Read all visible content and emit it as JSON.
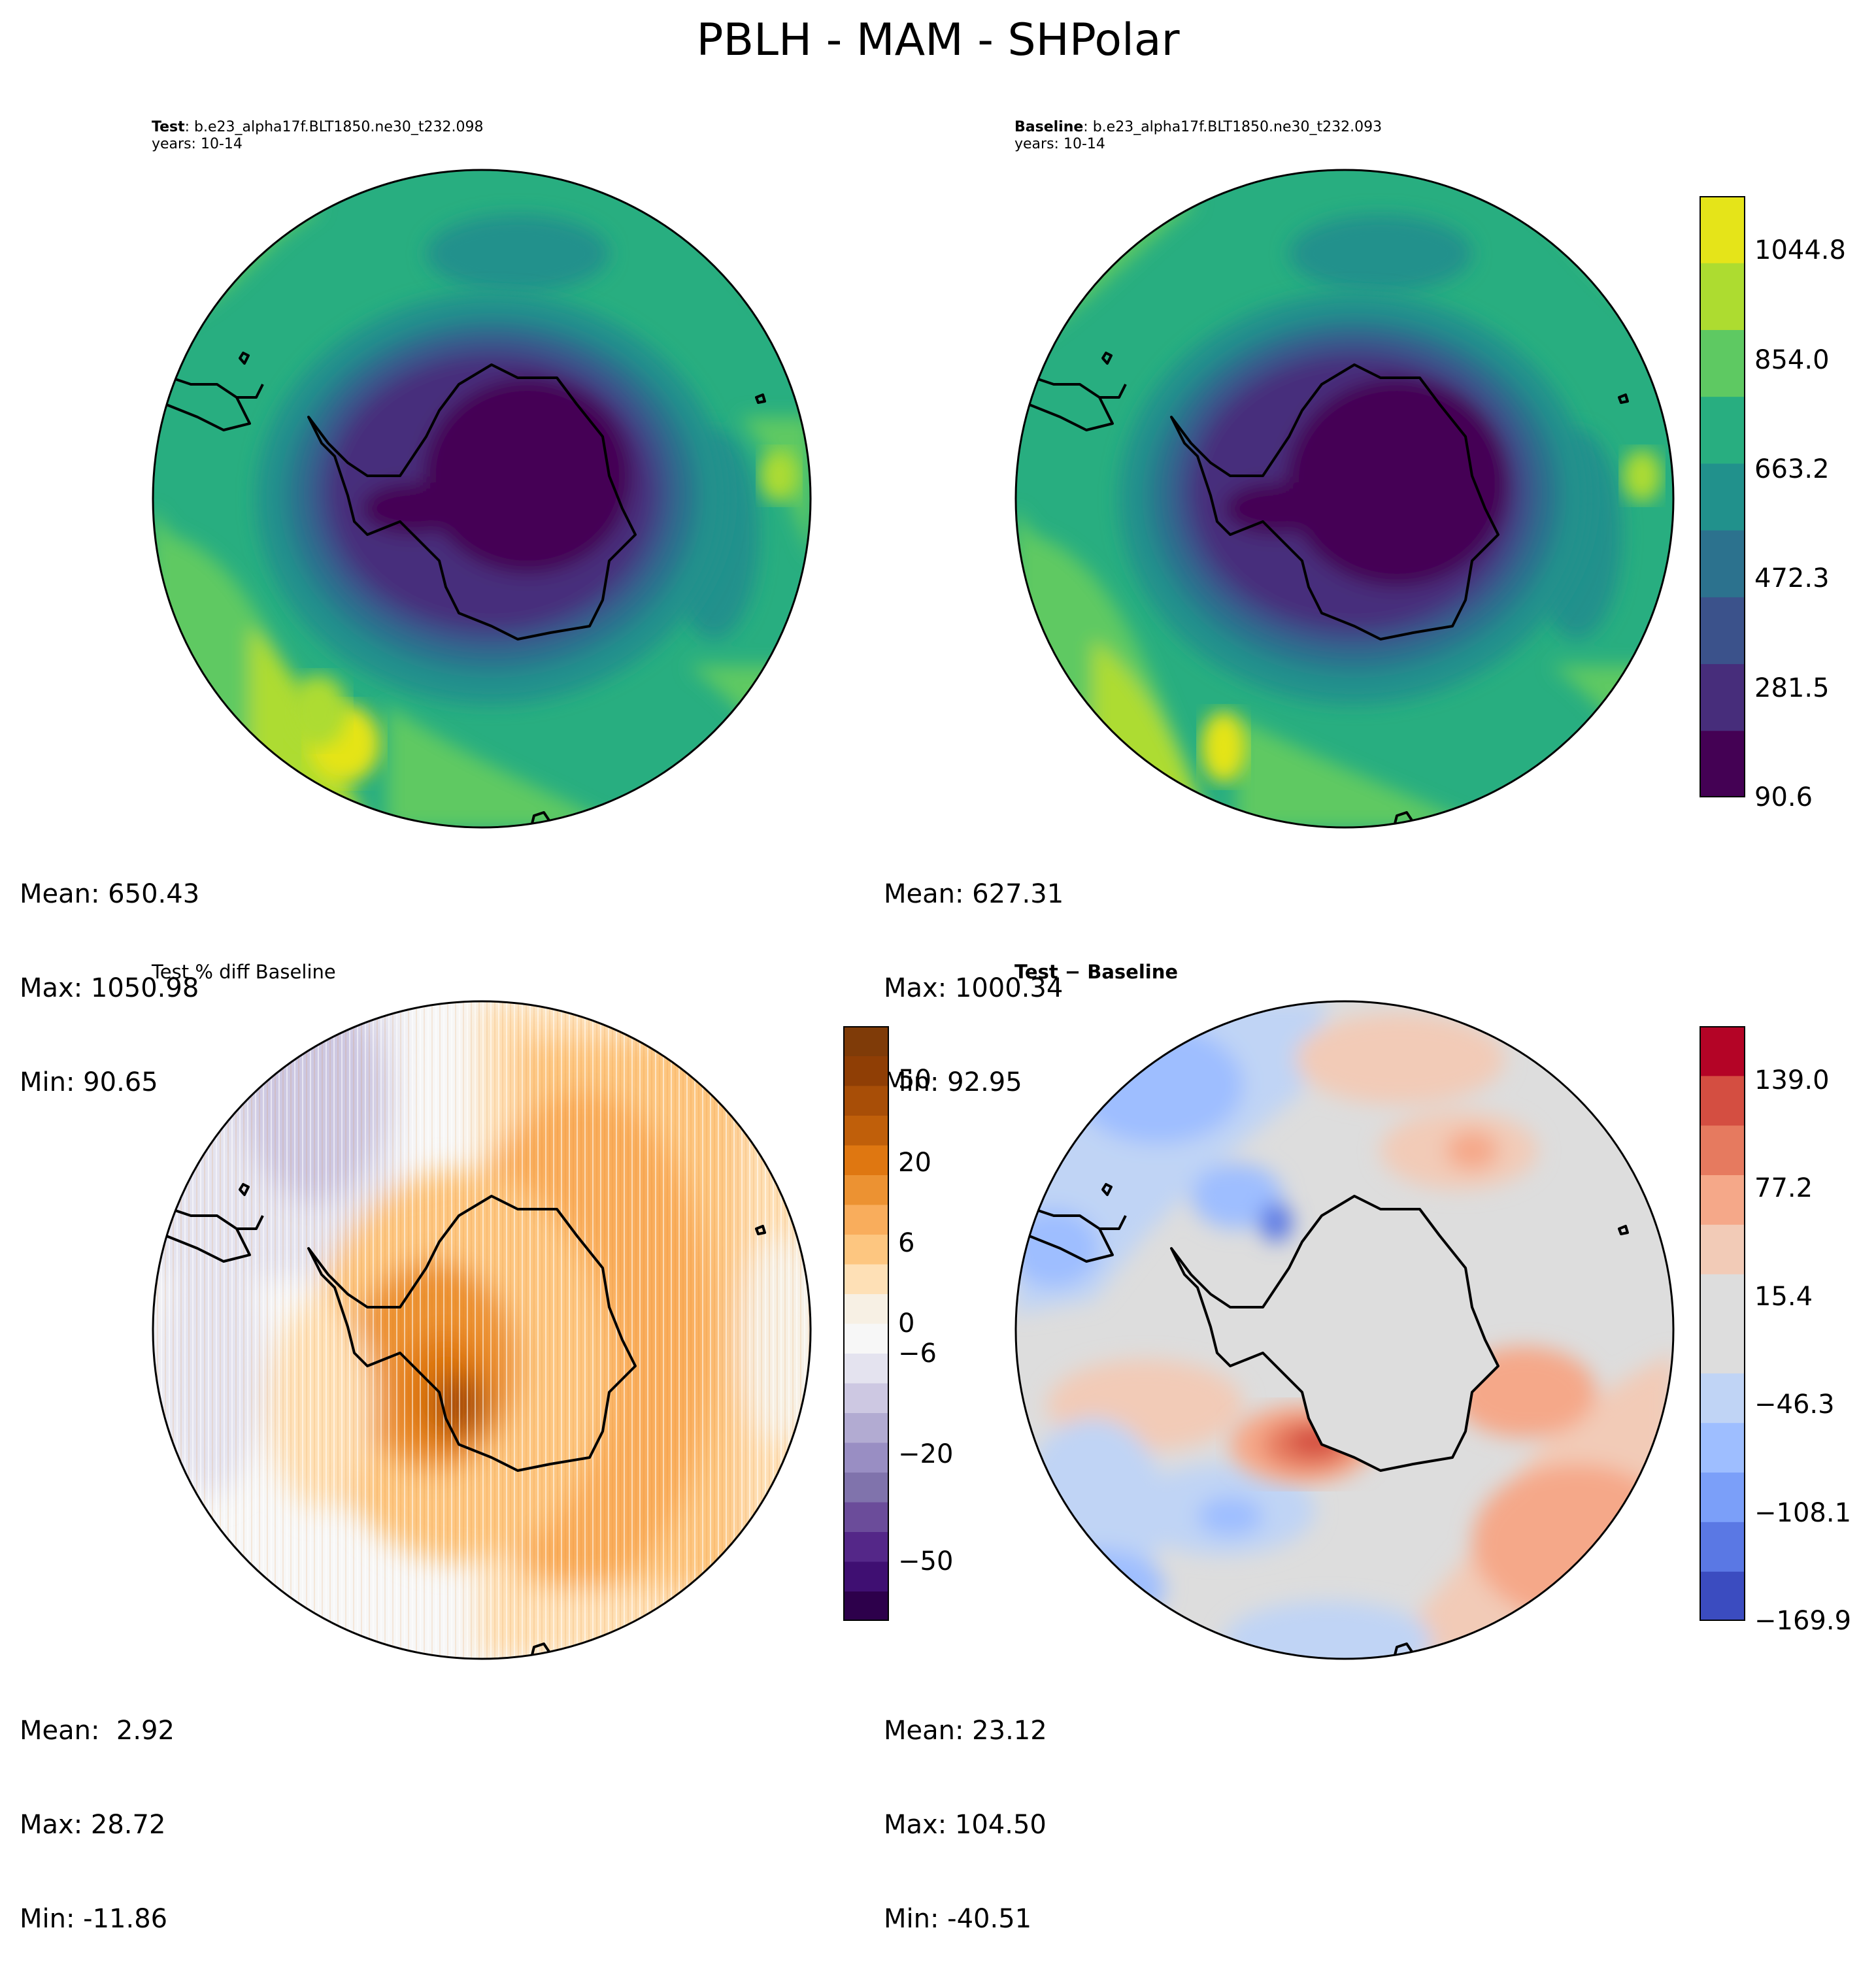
{
  "figure": {
    "title": "PBLH - MAM - SHPolar"
  },
  "panels": {
    "test": {
      "label_bold": "Test",
      "label_rest": ": b.e23_alpha17f.BLT1850.ne30_t232.098",
      "years": "years: 10-14",
      "stats": {
        "mean": "Mean: 650.43",
        "max": "Max: 1050.98",
        "min": "Min: 90.65"
      }
    },
    "baseline": {
      "label_bold": "Baseline",
      "label_rest": ": b.e23_alpha17f.BLT1850.ne30_t232.093",
      "years": "years: 10-14",
      "stats": {
        "mean": "Mean: 627.31",
        "max": "Max: 1000.34",
        "min": "Min: 92.95"
      }
    },
    "pct_diff": {
      "title": "Test % diff Baseline",
      "stats": {
        "mean": "Mean:  2.92",
        "max": "Max: 28.72",
        "min": "Min: -11.86"
      }
    },
    "diff": {
      "title": "Test − Baseline",
      "stats": {
        "mean": "Mean: 23.12",
        "max": "Max: 104.50",
        "min": "Min: -40.51"
      }
    }
  },
  "colorbars": {
    "main": {
      "ticks": [
        "90.6",
        "281.5",
        "472.3",
        "663.2",
        "854.0",
        "1044.8"
      ],
      "tick_values": [
        90.6,
        281.5,
        472.3,
        663.2,
        854.0,
        1044.8
      ],
      "range": [
        90.6,
        1140.0
      ],
      "colors": [
        "#440154",
        "#472d7b",
        "#3b528b",
        "#2c728e",
        "#21918c",
        "#28ae80",
        "#5ec962",
        "#addc30",
        "#e5e419"
      ]
    },
    "pct": {
      "ticks": [
        "−50",
        "−20",
        "−6",
        "0",
        "6",
        "20",
        "50"
      ],
      "tick_positions": [
        0.1,
        0.28,
        0.45,
        0.5,
        0.635,
        0.77,
        0.91
      ],
      "colors": [
        "#2d004b",
        "#3f0f72",
        "#542788",
        "#6b4c9a",
        "#8073ac",
        "#998ec3",
        "#b2abd2",
        "#cdc8e2",
        "#e4e3ef",
        "#f7f7f7",
        "#f7f0e4",
        "#fee0b6",
        "#fdc680",
        "#f9ad5c",
        "#ec9232",
        "#df7711",
        "#c05f0a",
        "#a84e07",
        "#8f3e05",
        "#7f3b08"
      ]
    },
    "diff": {
      "ticks": [
        "−169.9",
        "−108.1",
        "−46.3",
        "15.4",
        "77.2",
        "139.0"
      ],
      "tick_values": [
        -169.9,
        -108.1,
        -46.3,
        15.4,
        77.2,
        139.0
      ],
      "range": [
        -169.9,
        170.0
      ],
      "colors": [
        "#3b4cc0",
        "#5a78e4",
        "#7b9ff9",
        "#9ebeff",
        "#c0d4f5",
        "#dddddd",
        "#dddddd",
        "#f2cbb7",
        "#f5a889",
        "#e67a5f",
        "#d44e41",
        "#b40426"
      ]
    }
  }
}
